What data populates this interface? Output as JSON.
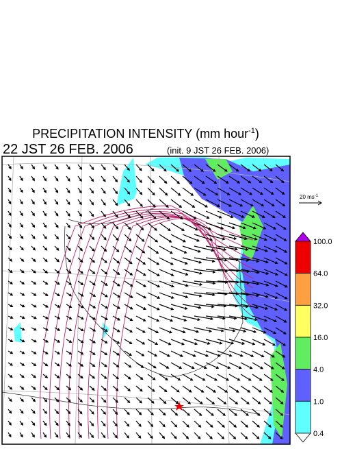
{
  "header": {
    "title": "PRECIPITATION INTENSITY (mm hour",
    "title_sup": "-1",
    "title_end": ")",
    "valid_time": "22 JST 26 FEB. 2006",
    "init_time": "(init. 9 JST 26 FEB. 2006)"
  },
  "wind_scale": {
    "label": "20 ms",
    "label_sup": "-1"
  },
  "colorbar": {
    "labels": [
      "100.0",
      "64.0",
      "32.0",
      "16.0",
      "4.0",
      "1.0",
      "0.4"
    ],
    "colors": [
      "#ee0000",
      "#ffa040",
      "#ffff60",
      "#60ee60",
      "#6060ff",
      "#60ffff"
    ],
    "over_color": "#b000ee",
    "under_color": "#ffffff"
  }
}
